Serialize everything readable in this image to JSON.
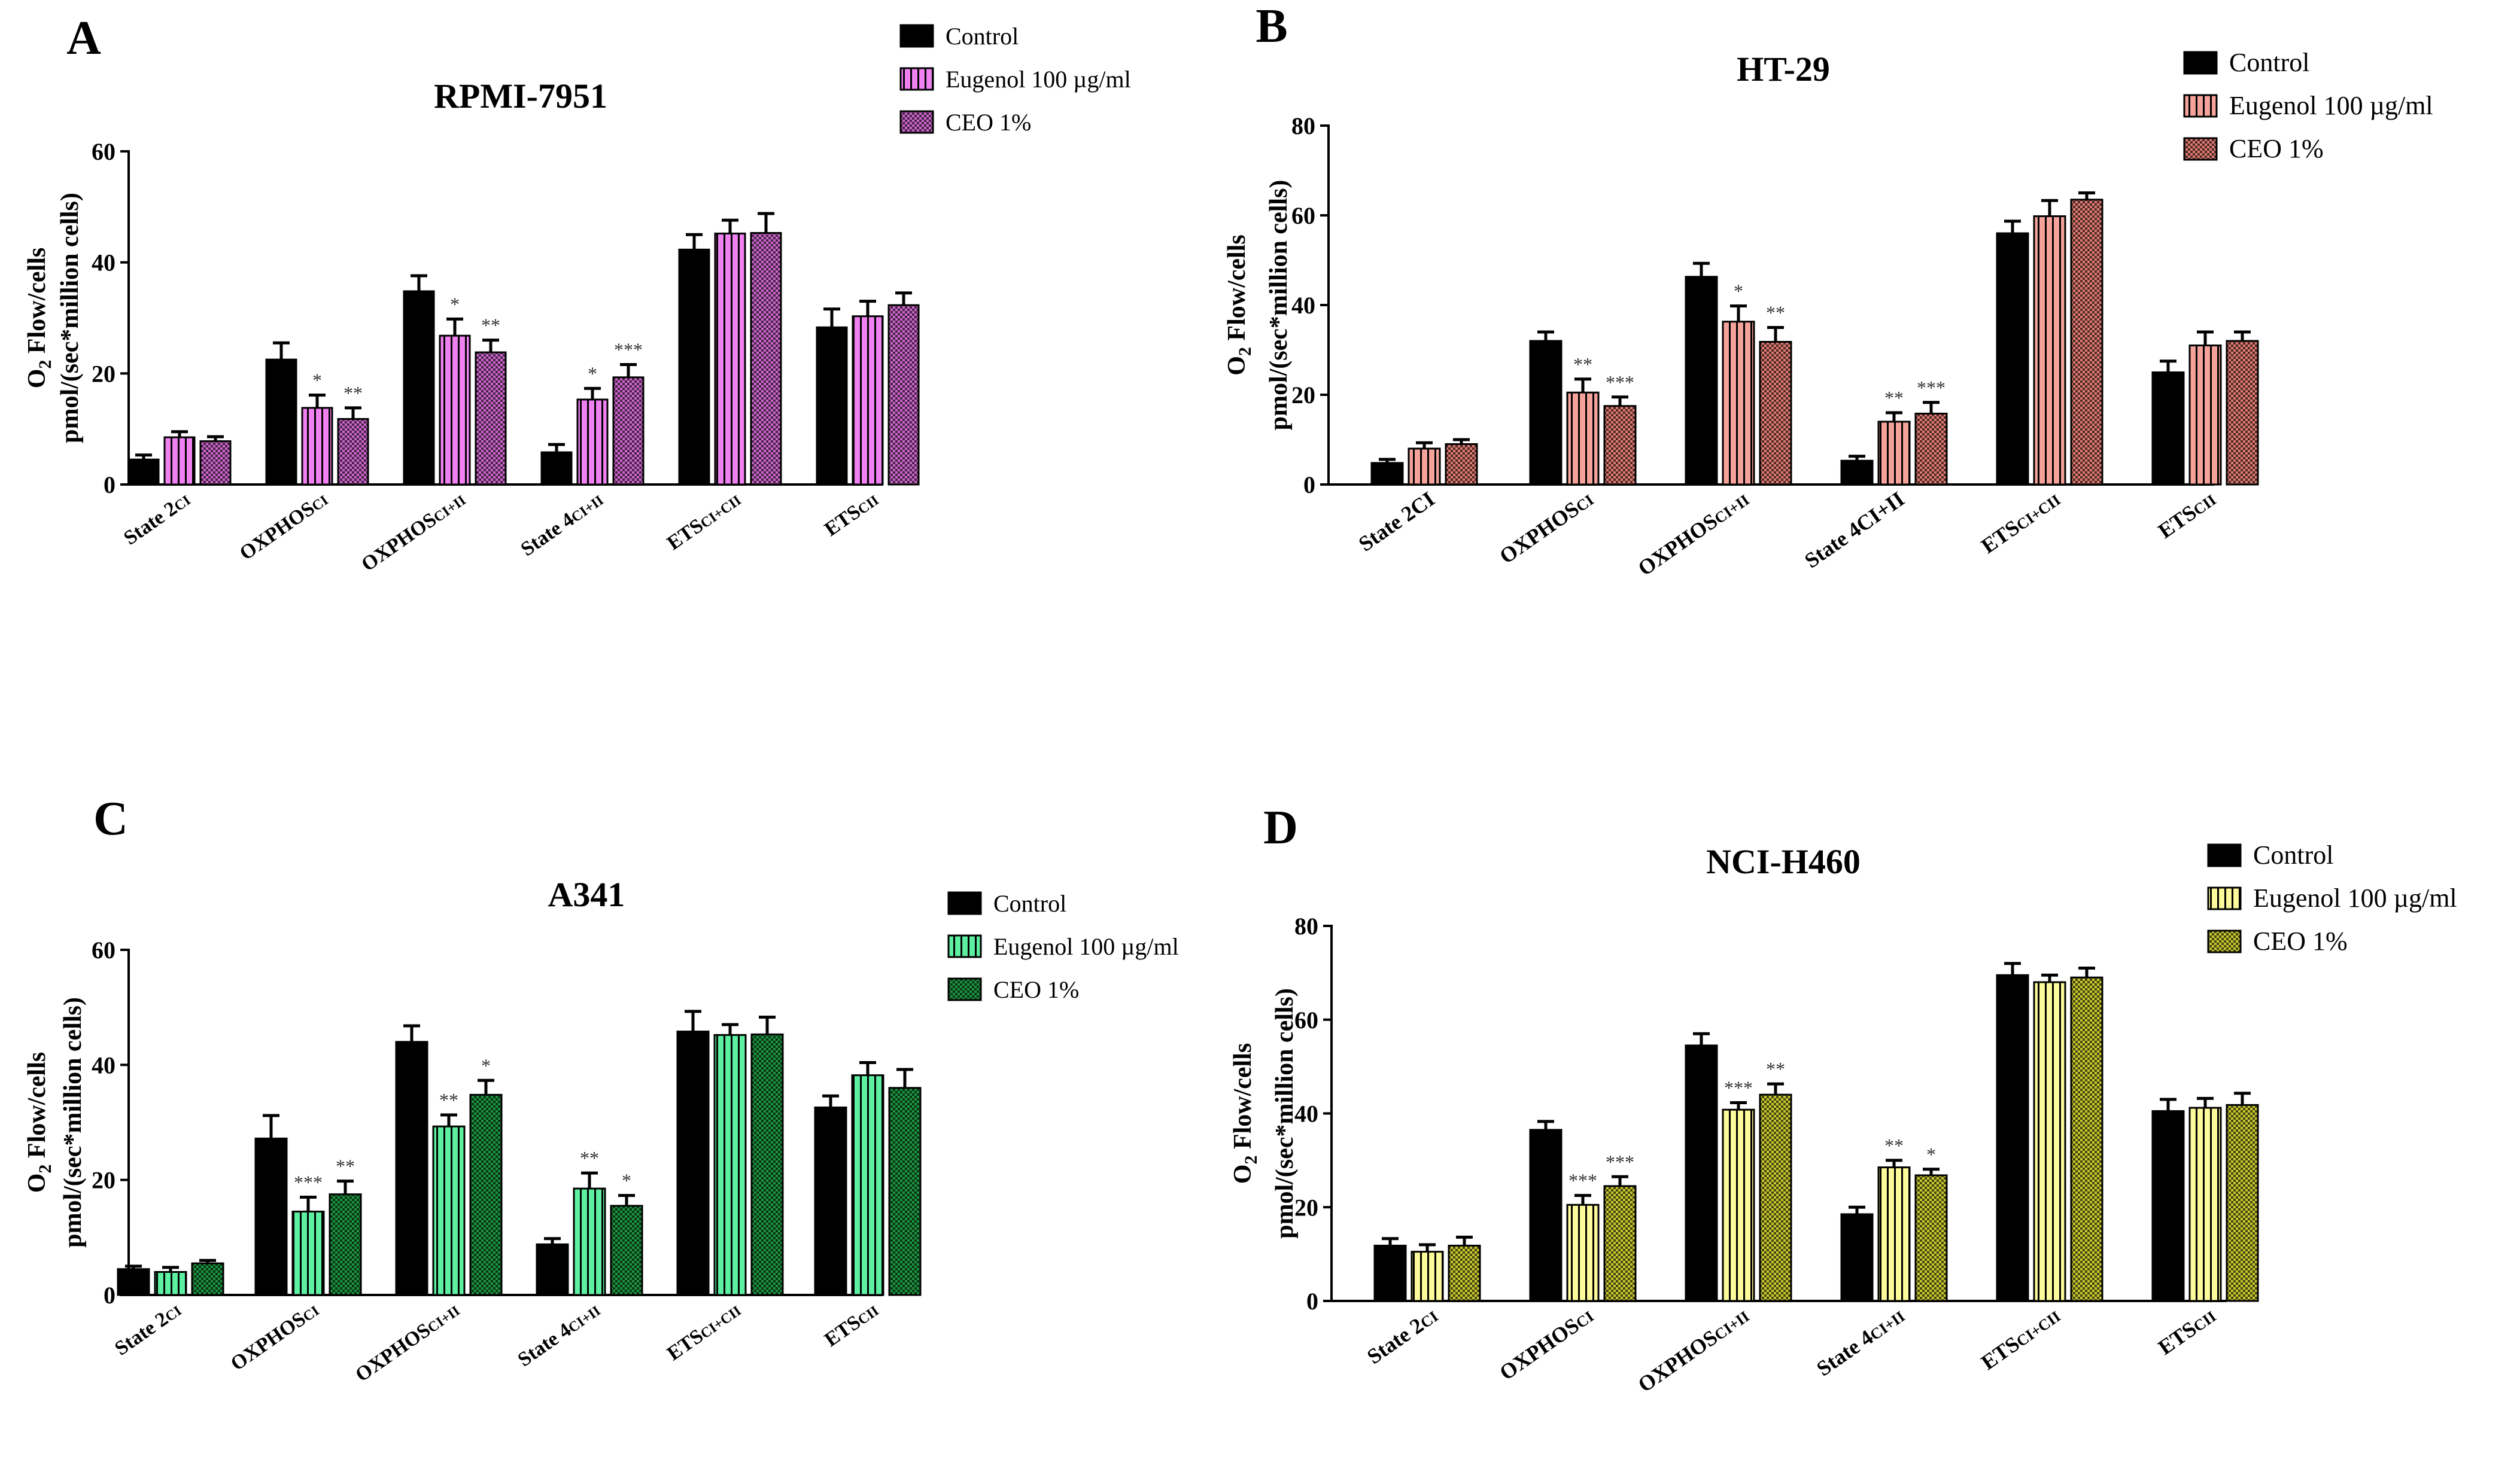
{
  "figure": {
    "panels": [
      {
        "letter": "A",
        "subplot_title": "RPMI-7951",
        "ylabel_line1": "O",
        "ylabel_sub": "2",
        "ylabel_line1_rest": " Flow/cells",
        "ylabel_line2": "pmol/(sec*million cells)",
        "legend": [
          "Control",
          "Eugenol 100 µg/ml",
          "CEO 1%"
        ],
        "colors": {
          "control": "#000000",
          "eugenol": "#f081f0",
          "ceo": "#cc66cc"
        }
      },
      {
        "letter": "B",
        "subplot_title": "HT-29",
        "ylabel_line1": "O",
        "ylabel_sub": "2",
        "ylabel_line1_rest": " Flow/cells",
        "ylabel_line2": "pmol/(sec*million cells)",
        "legend": [
          "Control",
          "Eugenol 100 µg/ml",
          "CEO 1%"
        ],
        "colors": {
          "control": "#000000",
          "eugenol": "#f5a39a",
          "ceo": "#e07a72"
        }
      },
      {
        "letter": "C",
        "subplot_title": "A341",
        "ylabel_line1": "O",
        "ylabel_sub": "2",
        "ylabel_line1_rest": " Flow/cells",
        "ylabel_line2": "pmol/(sec*million cells)",
        "legend": [
          "Control",
          "Eugenol 100 µg/ml",
          "CEO 1%"
        ],
        "colors": {
          "control": "#000000",
          "eugenol": "#5cf0a0",
          "ceo": "#1d9440"
        }
      },
      {
        "letter": "D",
        "subplot_title": "NCI-H460",
        "ylabel_line1": "O",
        "ylabel_sub": "2",
        "ylabel_line1_rest": " Flow/cells",
        "ylabel_line2": "pmol/(sec*million cells)",
        "legend": [
          "Control",
          "Eugenol 100  µg/ml",
          "CEO 1%"
        ],
        "colors": {
          "control": "#000000",
          "eugenol": "#fcfa9a",
          "ceo": "#c8c830"
        }
      }
    ]
  },
  "chart_data": [
    {
      "type": "bar",
      "title": "RPMI-7951",
      "xlabel": "",
      "ylabel": "O2 Flow/cells pmol/(sec*million cells)",
      "ylim": [
        0,
        60
      ],
      "yticks": [
        0,
        20,
        40,
        60
      ],
      "categories": [
        {
          "main": "State 2",
          "sub": "CI"
        },
        {
          "main": "OXPHOS",
          "sub": "CI"
        },
        {
          "main": "OXPHOS",
          "sub": "CI+II"
        },
        {
          "main": "State 4",
          "sub": "CI+II"
        },
        {
          "main": "ETS",
          "sub": "CI+CII"
        },
        {
          "main": "ETS",
          "sub": "CII"
        }
      ],
      "series": [
        {
          "name": "Control",
          "values": [
            4.5,
            22.5,
            34.8,
            5.8,
            42.3,
            28.3
          ],
          "errors": [
            0.8,
            3.0,
            2.8,
            1.4,
            2.7,
            3.3
          ],
          "sig": [
            "",
            "",
            "",
            "",
            "",
            ""
          ]
        },
        {
          "name": "Eugenol 100 µg/ml",
          "values": [
            8.5,
            13.8,
            26.8,
            15.3,
            45.2,
            30.3
          ],
          "errors": [
            1.0,
            2.3,
            3.0,
            2.0,
            2.4,
            2.7
          ],
          "sig": [
            "",
            "*",
            "*",
            "*",
            "",
            ""
          ]
        },
        {
          "name": "CEO 1%",
          "values": [
            7.8,
            11.8,
            23.8,
            19.3,
            45.3,
            32.3
          ],
          "errors": [
            0.8,
            2.0,
            2.2,
            2.3,
            3.5,
            2.2
          ],
          "sig": [
            "",
            "**",
            "**",
            "***",
            "",
            ""
          ]
        }
      ]
    },
    {
      "type": "bar",
      "title": "HT-29",
      "xlabel": "",
      "ylabel": "O2 Flow/cells pmol/(sec*million cells)",
      "ylim": [
        0,
        80
      ],
      "yticks": [
        0,
        20,
        40,
        60,
        80
      ],
      "categories": [
        {
          "main": "State 2CI",
          "sub": ""
        },
        {
          "main": "OXPHOS",
          "sub": "CI"
        },
        {
          "main": "OXPHOS",
          "sub": "CI+II"
        },
        {
          "main": "State 4CI+II",
          "sub": ""
        },
        {
          "main": "ETS",
          "sub": "CI+CII"
        },
        {
          "main": "ETS",
          "sub": "CII"
        }
      ],
      "series": [
        {
          "name": "Control",
          "values": [
            4.8,
            32.0,
            46.3,
            5.3,
            56.0,
            25.0
          ],
          "errors": [
            0.8,
            2.0,
            3.0,
            1.0,
            2.7,
            2.5
          ],
          "sig": [
            "",
            "",
            "",
            "",
            "",
            ""
          ]
        },
        {
          "name": "Eugenol 100 µg/ml",
          "values": [
            8.0,
            20.5,
            36.3,
            14.0,
            59.8,
            31.0
          ],
          "errors": [
            1.3,
            3.0,
            3.5,
            2.0,
            3.5,
            3.0
          ],
          "sig": [
            "",
            "**",
            "*",
            "**",
            "",
            ""
          ]
        },
        {
          "name": "CEO 1%",
          "values": [
            9.0,
            17.5,
            31.8,
            15.8,
            63.5,
            32.0
          ],
          "errors": [
            1.0,
            2.0,
            3.2,
            2.5,
            1.5,
            2.0
          ],
          "sig": [
            "",
            "***",
            "**",
            "***",
            "",
            ""
          ]
        }
      ]
    },
    {
      "type": "bar",
      "title": "A341",
      "xlabel": "",
      "ylabel": "O2 Flow/cells pmol/(sec*million cells)",
      "ylim": [
        0,
        60
      ],
      "yticks": [
        0,
        20,
        40,
        60
      ],
      "categories": [
        {
          "main": "State 2",
          "sub": "CI"
        },
        {
          "main": "OXPHOS",
          "sub": "CI"
        },
        {
          "main": "OXPHOS",
          "sub": "CI+II"
        },
        {
          "main": "State 4",
          "sub": "CI+II"
        },
        {
          "main": "ETS",
          "sub": "CI+CII"
        },
        {
          "main": "ETS",
          "sub": "CII"
        }
      ],
      "series": [
        {
          "name": "Control",
          "values": [
            4.5,
            27.2,
            44.0,
            8.8,
            45.8,
            32.6
          ],
          "errors": [
            0.5,
            4.0,
            2.8,
            1.0,
            3.5,
            2.0
          ],
          "sig": [
            "",
            "",
            "",
            "",
            "",
            ""
          ]
        },
        {
          "name": "Eugenol 100 µg/ml",
          "values": [
            4.0,
            14.5,
            29.3,
            18.5,
            45.2,
            38.2
          ],
          "errors": [
            0.8,
            2.5,
            2.0,
            2.7,
            1.8,
            2.2
          ],
          "sig": [
            "",
            "***",
            "**",
            "**",
            "",
            ""
          ]
        },
        {
          "name": "CEO 1%",
          "values": [
            5.5,
            17.5,
            34.8,
            15.5,
            45.3,
            36.0
          ],
          "errors": [
            0.5,
            2.3,
            2.5,
            1.8,
            3.0,
            3.2
          ],
          "sig": [
            "",
            "**",
            "*",
            "*",
            "",
            ""
          ]
        }
      ]
    },
    {
      "type": "bar",
      "title": "NCI-H460",
      "xlabel": "",
      "ylabel": "O2 Flow/cells pmol/(sec*million cells)",
      "ylim": [
        0,
        80
      ],
      "yticks": [
        0,
        20,
        40,
        60,
        80
      ],
      "categories": [
        {
          "main": "State 2",
          "sub": "CI"
        },
        {
          "main": "OXPHOS",
          "sub": "CI"
        },
        {
          "main": "OXPHOS",
          "sub": "CI+II"
        },
        {
          "main": "State 4",
          "sub": "CI+II"
        },
        {
          "main": "ETS",
          "sub": "CI+CII"
        },
        {
          "main": "ETS",
          "sub": "CII"
        }
      ],
      "series": [
        {
          "name": "Control",
          "values": [
            11.8,
            36.5,
            54.5,
            18.5,
            69.5,
            40.5
          ],
          "errors": [
            1.5,
            1.8,
            2.5,
            1.5,
            2.5,
            2.5
          ],
          "sig": [
            "",
            "",
            "",
            "",
            "",
            ""
          ]
        },
        {
          "name": "Eugenol 100  µg/ml",
          "values": [
            10.5,
            20.5,
            40.8,
            28.5,
            68.0,
            41.2
          ],
          "errors": [
            1.5,
            2.0,
            1.5,
            1.5,
            1.5,
            2.0
          ],
          "sig": [
            "",
            "***",
            "***",
            "**",
            "",
            ""
          ]
        },
        {
          "name": "CEO 1%",
          "values": [
            11.8,
            24.5,
            44.0,
            26.8,
            69.0,
            41.8
          ],
          "errors": [
            1.8,
            2.0,
            2.3,
            1.3,
            2.0,
            2.5
          ],
          "sig": [
            "",
            "***",
            "**",
            "*",
            "",
            ""
          ]
        }
      ]
    }
  ]
}
